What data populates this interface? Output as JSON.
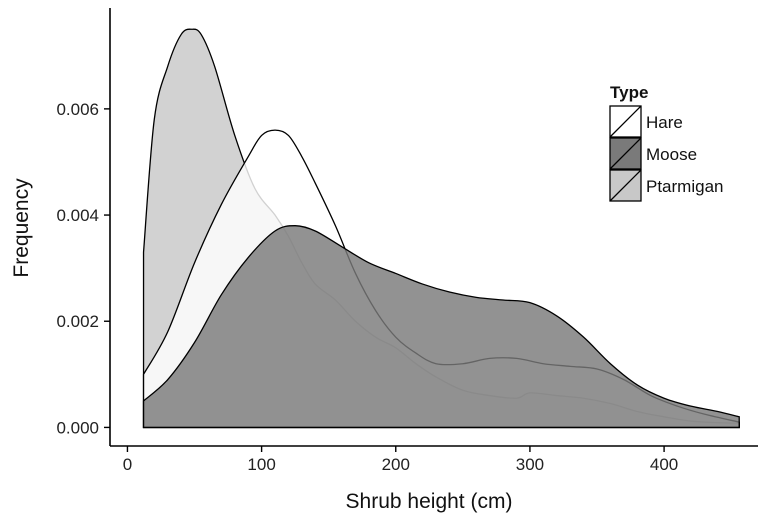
{
  "chart_data": {
    "type": "area",
    "title": "",
    "xlabel": "Shrub height (cm)",
    "ylabel": "Frequency",
    "xlim": [
      -13,
      470
    ],
    "ylim": [
      -0.00035,
      0.0079
    ],
    "xticks": [
      0,
      100,
      200,
      300,
      400
    ],
    "xtick_labels": [
      "0",
      "100",
      "200",
      "300",
      "400"
    ],
    "yticks": [
      0.0,
      0.002,
      0.004,
      0.006
    ],
    "ytick_labels": [
      "0.000",
      "0.002",
      "0.004",
      "0.006"
    ],
    "grid": false,
    "legend": {
      "title": "Type",
      "position": "top-right",
      "entries": [
        "Hare",
        "Moose",
        "Ptarmigan"
      ]
    },
    "series": [
      {
        "name": "Ptarmigan",
        "fill": "#c8c8c8",
        "x": [
          12,
          20,
          30,
          40,
          48,
          55,
          65,
          80,
          95,
          110,
          120,
          130,
          140,
          155,
          170,
          185,
          200,
          215,
          230,
          250,
          270,
          290,
          300,
          320,
          340,
          360,
          380,
          400,
          420,
          440,
          456
        ],
        "values": [
          0.0033,
          0.0058,
          0.0068,
          0.0074,
          0.0075,
          0.0074,
          0.0068,
          0.0055,
          0.0045,
          0.004,
          0.0036,
          0.0031,
          0.0027,
          0.0024,
          0.002,
          0.0017,
          0.0015,
          0.0012,
          0.00095,
          0.0007,
          0.0006,
          0.00055,
          0.00065,
          0.0006,
          0.00055,
          0.00045,
          0.0003,
          0.0002,
          0.00012,
          9e-05,
          8e-05
        ]
      },
      {
        "name": "Hare",
        "fill": "#ffffff",
        "x": [
          12,
          30,
          50,
          70,
          90,
          100,
          110,
          120,
          130,
          140,
          155,
          170,
          185,
          200,
          215,
          230,
          250,
          270,
          290,
          310,
          330,
          350,
          370,
          390,
          410,
          430,
          456
        ],
        "values": [
          0.001,
          0.0018,
          0.0031,
          0.0042,
          0.0051,
          0.0055,
          0.0056,
          0.0055,
          0.0051,
          0.0046,
          0.0038,
          0.0029,
          0.0022,
          0.0017,
          0.0014,
          0.0012,
          0.0012,
          0.0013,
          0.0013,
          0.0012,
          0.00115,
          0.0011,
          0.0009,
          0.0006,
          0.0004,
          0.00025,
          0.0001
        ]
      },
      {
        "name": "Moose",
        "fill": "#7a7a7a",
        "x": [
          12,
          30,
          50,
          70,
          90,
          110,
          125,
          140,
          160,
          180,
          200,
          220,
          240,
          260,
          280,
          300,
          320,
          340,
          360,
          380,
          400,
          420,
          440,
          456
        ],
        "values": [
          0.0005,
          0.0009,
          0.0016,
          0.0025,
          0.0032,
          0.0037,
          0.0038,
          0.0037,
          0.0034,
          0.0031,
          0.0029,
          0.0027,
          0.00255,
          0.00245,
          0.0024,
          0.00235,
          0.0021,
          0.0017,
          0.0012,
          0.0008,
          0.00055,
          0.0004,
          0.0003,
          0.0002
        ]
      }
    ],
    "series_shown_in_legend_order": [
      "Hare",
      "Moose",
      "Ptarmigan"
    ]
  }
}
